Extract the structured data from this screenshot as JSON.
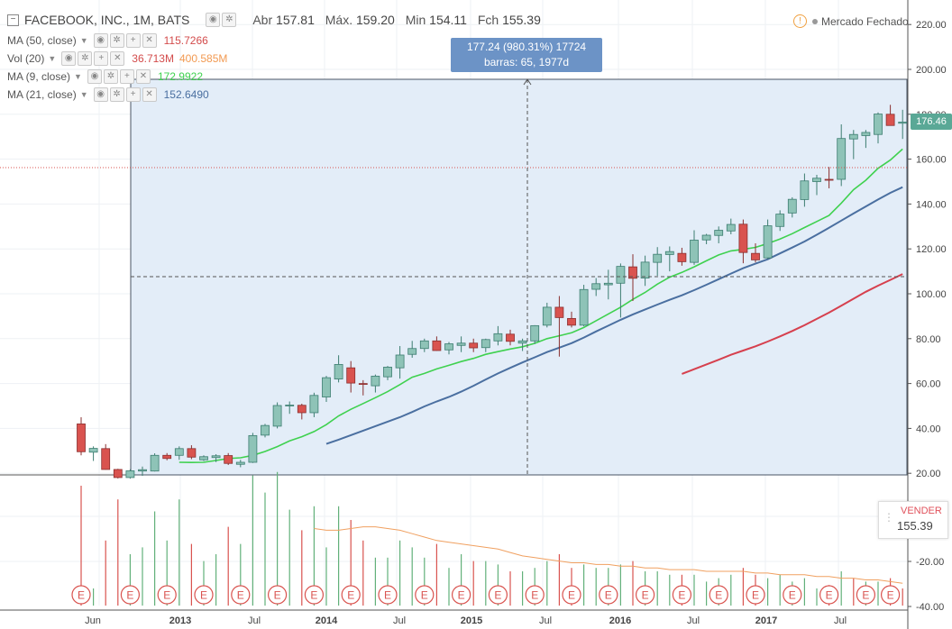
{
  "symbol_title": "FACEBOOK, INC., 1M, BATS",
  "ohlc": {
    "open_label": "Abr",
    "open": "157.81",
    "high_label": "Máx.",
    "high": "159.20",
    "low_label": "Min",
    "low": "154.11",
    "close_label": "Fch",
    "close": "155.39"
  },
  "market_status": "Mercado Fechado",
  "indicators": [
    {
      "label": "MA (50, close)",
      "value": "115.7266",
      "color": "#d34b4b"
    },
    {
      "label": "Vol (20)",
      "value": "36.713M",
      "value2": "400.585M",
      "color": "#d34b4b",
      "color2": "#f29a52"
    },
    {
      "label": "MA (9, close)",
      "value": "172.9922",
      "color": "#3fd14f"
    },
    {
      "label": "MA (21, close)",
      "value": "152.6490",
      "color": "#4a6fa0"
    }
  ],
  "measure_tooltip": {
    "line1": "177.24 (980.31%) 17724",
    "line2": "barras: 65, 1977d"
  },
  "sell_box": {
    "label": "VENDER",
    "value": "155.39"
  },
  "last_price_label": "176.46",
  "colors": {
    "up": "#8ec3b7",
    "up_border": "#3c7d70",
    "down": "#d9534f",
    "down_fill": "#c97a7a",
    "ma9": "#3fd14f",
    "ma21": "#4a6fa0",
    "ma50": "#d6404e",
    "vol_ma": "#f0a060",
    "selection": "#e3edf8"
  },
  "earnings_marker": "E",
  "chart_data": {
    "type": "candlestick",
    "x_tick_labels": [
      "Jun",
      "2013",
      "Jul",
      "2014",
      "Jul",
      "2015",
      "Jul",
      "2016",
      "Jul",
      "2017",
      "Jul"
    ],
    "price_axis_ticks": [
      "220.00",
      "200.00",
      "180.00",
      "160.00",
      "140.00",
      "120.00",
      "100.00",
      "80.00",
      "60.00",
      "40.00",
      "20.00"
    ],
    "volume_axis_ticks": [
      "-20.00",
      "-40.00"
    ],
    "ylim": [
      12,
      228
    ],
    "candles": [
      {
        "o": 42.0,
        "h": 45.0,
        "l": 28.0,
        "c": 29.6
      },
      {
        "o": 29.4,
        "h": 32.0,
        "l": 25.5,
        "c": 31.1
      },
      {
        "o": 31.0,
        "h": 33.0,
        "l": 21.6,
        "c": 21.7
      },
      {
        "o": 21.7,
        "h": 22.0,
        "l": 17.7,
        "c": 18.1
      },
      {
        "o": 18.1,
        "h": 21.8,
        "l": 17.6,
        "c": 21.1
      },
      {
        "o": 21.0,
        "h": 23.0,
        "l": 18.9,
        "c": 21.6
      },
      {
        "o": 21.0,
        "h": 28.9,
        "l": 20.8,
        "c": 28.0
      },
      {
        "o": 28.0,
        "h": 29.0,
        "l": 25.8,
        "c": 26.6
      },
      {
        "o": 28.0,
        "h": 32.0,
        "l": 26.0,
        "c": 31.0
      },
      {
        "o": 31.0,
        "h": 32.5,
        "l": 26.3,
        "c": 27.2
      },
      {
        "o": 26.0,
        "h": 28.0,
        "l": 25.5,
        "c": 27.4
      },
      {
        "o": 27.0,
        "h": 28.5,
        "l": 25.0,
        "c": 27.8
      },
      {
        "o": 27.9,
        "h": 29.0,
        "l": 23.7,
        "c": 24.4
      },
      {
        "o": 24.0,
        "h": 26.0,
        "l": 22.7,
        "c": 24.9
      },
      {
        "o": 24.9,
        "h": 38.0,
        "l": 24.6,
        "c": 36.8
      },
      {
        "o": 37.0,
        "h": 42.0,
        "l": 36.0,
        "c": 41.3
      },
      {
        "o": 41.0,
        "h": 51.6,
        "l": 40.0,
        "c": 50.2
      },
      {
        "o": 50.0,
        "h": 52.0,
        "l": 46.5,
        "c": 50.4
      },
      {
        "o": 50.3,
        "h": 51.0,
        "l": 44.0,
        "c": 47.0
      },
      {
        "o": 47.0,
        "h": 55.9,
        "l": 45.0,
        "c": 54.7
      },
      {
        "o": 54.0,
        "h": 63.4,
        "l": 51.8,
        "c": 62.6
      },
      {
        "o": 62.0,
        "h": 72.6,
        "l": 60.5,
        "c": 68.5
      },
      {
        "o": 67.0,
        "h": 70.0,
        "l": 56.0,
        "c": 60.2
      },
      {
        "o": 60.0,
        "h": 61.5,
        "l": 54.7,
        "c": 59.8
      },
      {
        "o": 59.0,
        "h": 64.0,
        "l": 56.0,
        "c": 63.3
      },
      {
        "o": 63.0,
        "h": 67.8,
        "l": 61.5,
        "c": 67.3
      },
      {
        "o": 67.0,
        "h": 76.7,
        "l": 62.2,
        "c": 72.7
      },
      {
        "o": 73.0,
        "h": 79.0,
        "l": 71.5,
        "c": 75.6
      },
      {
        "o": 75.6,
        "h": 80.0,
        "l": 74.0,
        "c": 79.0
      },
      {
        "o": 79.0,
        "h": 81.0,
        "l": 74.6,
        "c": 74.7
      },
      {
        "o": 75.0,
        "h": 78.5,
        "l": 73.0,
        "c": 77.7
      },
      {
        "o": 77.0,
        "h": 81.0,
        "l": 74.0,
        "c": 78.0
      },
      {
        "o": 78.0,
        "h": 80.0,
        "l": 74.0,
        "c": 75.9
      },
      {
        "o": 76.0,
        "h": 80.0,
        "l": 74.0,
        "c": 79.6
      },
      {
        "o": 79.0,
        "h": 85.6,
        "l": 77.0,
        "c": 82.2
      },
      {
        "o": 82.0,
        "h": 84.0,
        "l": 77.0,
        "c": 78.8
      },
      {
        "o": 78.0,
        "h": 80.0,
        "l": 74.5,
        "c": 79.0
      },
      {
        "o": 79.0,
        "h": 86.0,
        "l": 77.7,
        "c": 85.8
      },
      {
        "o": 86.0,
        "h": 96.0,
        "l": 85.0,
        "c": 94.0
      },
      {
        "o": 94.0,
        "h": 99.0,
        "l": 72.0,
        "c": 89.4
      },
      {
        "o": 89.0,
        "h": 92.0,
        "l": 85.0,
        "c": 86.0
      },
      {
        "o": 86.0,
        "h": 104.0,
        "l": 85.5,
        "c": 101.9
      },
      {
        "o": 102.0,
        "h": 107.0,
        "l": 99.0,
        "c": 104.5
      },
      {
        "o": 104.0,
        "h": 110.7,
        "l": 97.5,
        "c": 104.7
      },
      {
        "o": 104.7,
        "h": 113.5,
        "l": 89.4,
        "c": 112.2
      },
      {
        "o": 112.0,
        "h": 117.6,
        "l": 96.8,
        "c": 106.9
      },
      {
        "o": 107.0,
        "h": 117.0,
        "l": 103.5,
        "c": 114.1
      },
      {
        "o": 114.0,
        "h": 120.8,
        "l": 108.0,
        "c": 117.6
      },
      {
        "o": 117.5,
        "h": 121.1,
        "l": 110.0,
        "c": 118.8
      },
      {
        "o": 118.0,
        "h": 120.5,
        "l": 112.5,
        "c": 114.3
      },
      {
        "o": 114.0,
        "h": 128.3,
        "l": 112.9,
        "c": 123.9
      },
      {
        "o": 124.0,
        "h": 126.7,
        "l": 122.1,
        "c": 126.1
      },
      {
        "o": 126.0,
        "h": 130.0,
        "l": 122.5,
        "c": 128.3
      },
      {
        "o": 128.0,
        "h": 133.5,
        "l": 126.5,
        "c": 130.9
      },
      {
        "o": 131.0,
        "h": 133.1,
        "l": 113.6,
        "c": 118.4
      },
      {
        "o": 118.0,
        "h": 122.5,
        "l": 114.0,
        "c": 115.1
      },
      {
        "o": 116.0,
        "h": 133.1,
        "l": 115.5,
        "c": 130.3
      },
      {
        "o": 130.0,
        "h": 137.2,
        "l": 128.0,
        "c": 135.5
      },
      {
        "o": 136.0,
        "h": 143.0,
        "l": 134.0,
        "c": 142.1
      },
      {
        "o": 142.0,
        "h": 153.6,
        "l": 138.8,
        "c": 150.3
      },
      {
        "o": 150.0,
        "h": 153.0,
        "l": 144.0,
        "c": 151.5
      },
      {
        "o": 151.0,
        "h": 156.5,
        "l": 147.0,
        "c": 150.9
      },
      {
        "o": 151.0,
        "h": 175.5,
        "l": 148.0,
        "c": 169.2
      },
      {
        "o": 169.0,
        "h": 173.0,
        "l": 160.0,
        "c": 171.0
      },
      {
        "o": 170.5,
        "h": 173.0,
        "l": 165.0,
        "c": 171.9
      },
      {
        "o": 171.0,
        "h": 180.8,
        "l": 167.0,
        "c": 180.1
      },
      {
        "o": 180.0,
        "h": 184.2,
        "l": 175.0,
        "c": 175.0
      },
      {
        "o": 176.0,
        "h": 182.0,
        "l": 169.0,
        "c": 176.5
      }
    ],
    "volume": [
      {
        "v": 70,
        "up": false
      },
      {
        "v": 10,
        "up": true
      },
      {
        "v": 38,
        "up": false
      },
      {
        "v": 62,
        "up": false
      },
      {
        "v": 30,
        "up": true
      },
      {
        "v": 34,
        "up": true
      },
      {
        "v": 55,
        "up": true
      },
      {
        "v": 38,
        "up": true
      },
      {
        "v": 62,
        "up": true
      },
      {
        "v": 36,
        "up": false
      },
      {
        "v": 26,
        "up": true
      },
      {
        "v": 30,
        "up": true
      },
      {
        "v": 46,
        "up": false
      },
      {
        "v": 36,
        "up": true
      },
      {
        "v": 76,
        "up": true
      },
      {
        "v": 66,
        "up": true
      },
      {
        "v": 78,
        "up": true
      },
      {
        "v": 56,
        "up": true
      },
      {
        "v": 44,
        "up": false
      },
      {
        "v": 58,
        "up": true
      },
      {
        "v": 34,
        "up": true
      },
      {
        "v": 58,
        "up": true
      },
      {
        "v": 50,
        "up": false
      },
      {
        "v": 38,
        "up": false
      },
      {
        "v": 28,
        "up": true
      },
      {
        "v": 28,
        "up": true
      },
      {
        "v": 38,
        "up": true
      },
      {
        "v": 34,
        "up": true
      },
      {
        "v": 28,
        "up": true
      },
      {
        "v": 36,
        "up": false
      },
      {
        "v": 22,
        "up": true
      },
      {
        "v": 30,
        "up": true
      },
      {
        "v": 26,
        "up": false
      },
      {
        "v": 26,
        "up": true
      },
      {
        "v": 24,
        "up": true
      },
      {
        "v": 20,
        "up": false
      },
      {
        "v": 20,
        "up": true
      },
      {
        "v": 22,
        "up": true
      },
      {
        "v": 26,
        "up": true
      },
      {
        "v": 30,
        "up": false
      },
      {
        "v": 22,
        "up": false
      },
      {
        "v": 24,
        "up": true
      },
      {
        "v": 22,
        "up": true
      },
      {
        "v": 22,
        "up": true
      },
      {
        "v": 24,
        "up": true
      },
      {
        "v": 26,
        "up": false
      },
      {
        "v": 20,
        "up": true
      },
      {
        "v": 20,
        "up": true
      },
      {
        "v": 18,
        "up": true
      },
      {
        "v": 18,
        "up": false
      },
      {
        "v": 18,
        "up": true
      },
      {
        "v": 14,
        "up": true
      },
      {
        "v": 16,
        "up": true
      },
      {
        "v": 18,
        "up": true
      },
      {
        "v": 22,
        "up": false
      },
      {
        "v": 18,
        "up": false
      },
      {
        "v": 16,
        "up": true
      },
      {
        "v": 18,
        "up": true
      },
      {
        "v": 14,
        "up": true
      },
      {
        "v": 16,
        "up": true
      },
      {
        "v": 10,
        "up": true
      },
      {
        "v": 12,
        "up": false
      },
      {
        "v": 20,
        "up": true
      },
      {
        "v": 16,
        "up": false
      },
      {
        "v": 14,
        "up": true
      },
      {
        "v": 14,
        "up": true
      },
      {
        "v": 16,
        "up": false
      },
      {
        "v": 10,
        "up": false
      }
    ],
    "volume_ma": [
      null,
      null,
      null,
      null,
      null,
      null,
      null,
      null,
      null,
      null,
      null,
      null,
      null,
      null,
      null,
      null,
      null,
      null,
      null,
      45,
      44,
      44,
      45,
      46,
      46,
      45,
      44,
      42,
      40,
      38,
      37,
      36,
      35,
      34,
      33,
      31,
      29,
      28,
      27,
      26,
      25,
      25,
      24,
      24,
      23,
      23,
      22,
      22,
      21,
      21,
      21,
      20,
      20,
      20,
      20,
      19,
      19,
      18,
      18,
      18,
      17,
      17,
      16,
      16,
      15,
      15,
      14,
      13
    ],
    "ma9": [
      null,
      null,
      null,
      null,
      null,
      null,
      null,
      null,
      24.9,
      24.8,
      24.9,
      25.7,
      26.6,
      26.9,
      28.0,
      29.7,
      31.9,
      34.4,
      36.3,
      38.6,
      41.7,
      45.6,
      48.5,
      51.1,
      53.7,
      56.4,
      59.5,
      62.8,
      64.5,
      66.5,
      68.1,
      69.8,
      71.2,
      73.0,
      74.2,
      75.4,
      76.4,
      77.9,
      80.0,
      81.3,
      82.6,
      85.0,
      88.0,
      91.0,
      94.0,
      97.5,
      100.6,
      104.3,
      107.4,
      109.5,
      112.0,
      114.7,
      117.3,
      119.1,
      119.8,
      120.7,
      122.4,
      124.4,
      126.8,
      129.5,
      132.2,
      134.9,
      140.4,
      146.4,
      150.6,
      155.9,
      159.6,
      164.5
    ],
    "ma21": [
      null,
      null,
      null,
      null,
      null,
      null,
      null,
      null,
      null,
      null,
      null,
      null,
      null,
      null,
      null,
      null,
      null,
      null,
      null,
      null,
      33.1,
      35.0,
      37.0,
      39.0,
      41.0,
      43.0,
      45.0,
      47.3,
      49.8,
      52.0,
      54.0,
      56.4,
      59.0,
      61.8,
      64.5,
      67.0,
      69.4,
      71.7,
      74.0,
      76.0,
      78.0,
      80.5,
      83.2,
      85.8,
      88.4,
      90.8,
      93.0,
      95.2,
      97.3,
      99.3,
      101.6,
      104.0,
      106.5,
      109.0,
      111.4,
      113.4,
      115.4,
      118.0,
      120.6,
      123.3,
      126.3,
      129.4,
      132.6,
      135.8,
      138.9,
      142.0,
      145.0,
      147.5
    ],
    "ma50": [
      null,
      null,
      null,
      null,
      null,
      null,
      null,
      null,
      null,
      null,
      null,
      null,
      null,
      null,
      null,
      null,
      null,
      null,
      null,
      null,
      null,
      null,
      null,
      null,
      null,
      null,
      null,
      null,
      null,
      null,
      null,
      null,
      null,
      null,
      null,
      null,
      null,
      null,
      null,
      null,
      null,
      null,
      null,
      null,
      null,
      null,
      null,
      null,
      null,
      64.3,
      66.4,
      68.5,
      70.6,
      72.8,
      74.7,
      76.6,
      78.7,
      81.0,
      83.4,
      86.0,
      88.8,
      91.6,
      94.7,
      97.8,
      100.9,
      103.6,
      106.2,
      108.8
    ],
    "earnings_candle_index": [
      0,
      4,
      7,
      10,
      13,
      16,
      19,
      22,
      25,
      28,
      31,
      34,
      37,
      40,
      43,
      46,
      49,
      52,
      55,
      58,
      61,
      64,
      66
    ]
  }
}
